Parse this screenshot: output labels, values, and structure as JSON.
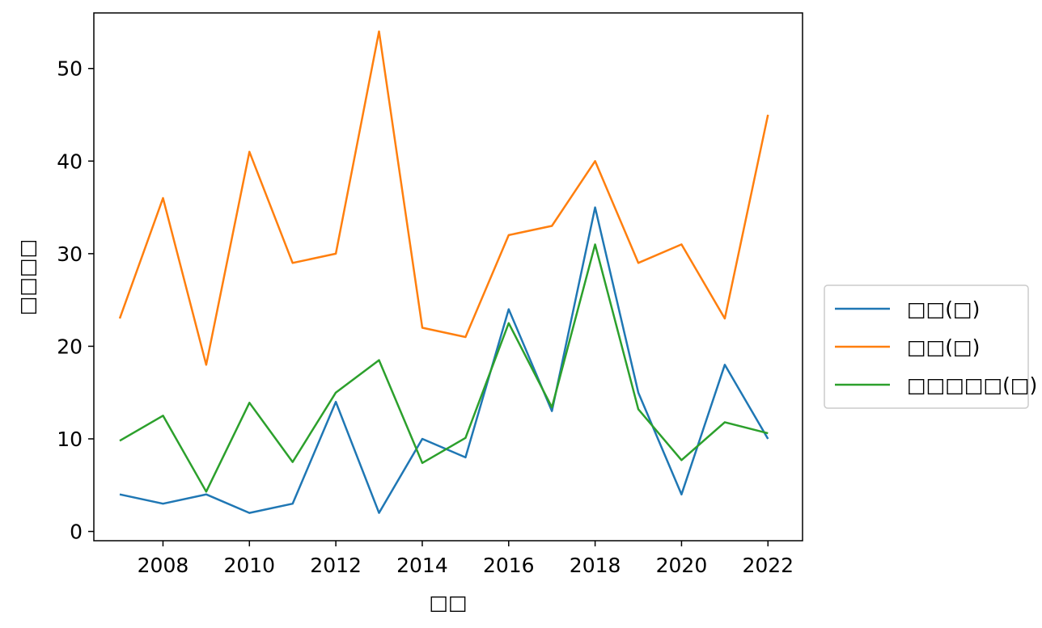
{
  "chart_data": {
    "type": "line",
    "title": "",
    "xlabel": "□□",
    "ylabel": "□□□□",
    "x": [
      2007,
      2008,
      2009,
      2010,
      2011,
      2012,
      2013,
      2014,
      2015,
      2016,
      2017,
      2018,
      2019,
      2020,
      2021,
      2022
    ],
    "xlim": [
      2006.4,
      2022.8
    ],
    "ylim": [
      -1,
      56
    ],
    "xticks": [
      2008,
      2010,
      2012,
      2014,
      2016,
      2018,
      2020,
      2022
    ],
    "yticks": [
      0,
      10,
      20,
      30,
      40,
      50
    ],
    "grid": false,
    "legend_position": "center-right-outside",
    "series": [
      {
        "name": "□□(□)",
        "color": "#1f77b4",
        "values": [
          4,
          3,
          4,
          2,
          3,
          14,
          2,
          10,
          8,
          24,
          13,
          35,
          15,
          4,
          18,
          10
        ]
      },
      {
        "name": "□□(□)",
        "color": "#ff7f0e",
        "values": [
          23,
          36,
          18,
          41,
          29,
          30,
          54,
          22,
          21,
          32,
          33,
          40,
          29,
          31,
          23,
          45
        ]
      },
      {
        "name": "□□□□□(□)",
        "color": "#2ca02c",
        "values": [
          9.8,
          12.5,
          4.3,
          13.9,
          7.5,
          15,
          18.5,
          7.4,
          10.1,
          22.5,
          13.4,
          31,
          13.2,
          7.7,
          11.8,
          10.6
        ]
      }
    ]
  }
}
